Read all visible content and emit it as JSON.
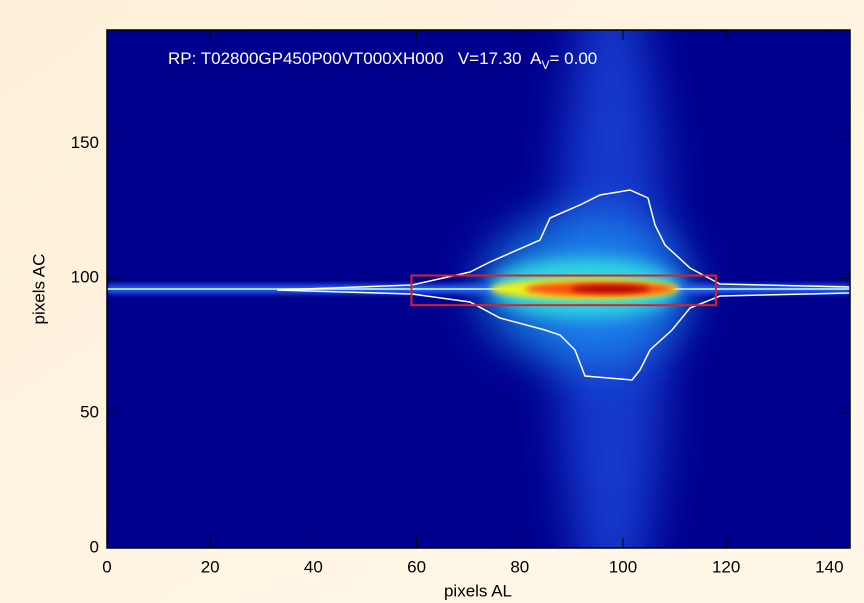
{
  "chart_data": {
    "type": "image",
    "title_parts": [
      "RP: T02800GP450P00VT000XH000   V=17.30  A",
      "V",
      "= 0.00"
    ],
    "xlabel": "pixels AL",
    "ylabel": "pixels AC",
    "xlim": [
      0,
      144
    ],
    "ylim": [
      0,
      192
    ],
    "xticks": [
      0,
      20,
      40,
      60,
      80,
      100,
      120,
      140
    ],
    "yticks": [
      0,
      50,
      100,
      150
    ],
    "box": {
      "x": [
        59,
        118
      ],
      "y": [
        90,
        101
      ],
      "color": "#e02020"
    }
  }
}
